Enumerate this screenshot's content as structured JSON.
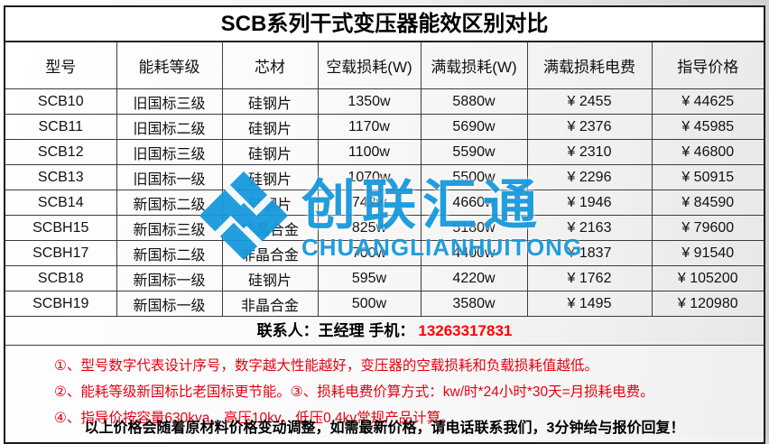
{
  "title": "SCB系列干式变压器能效区别对比",
  "table": {
    "columns": [
      "型号",
      "能耗等级",
      "芯材",
      "空载损耗(W)",
      "满载损耗(W)",
      "满载损耗电费",
      "指导价格"
    ],
    "rows": [
      [
        "SCB10",
        "旧国标三级",
        "硅钢片",
        "1350w",
        "5880w",
        "¥ 2455",
        "¥ 44625"
      ],
      [
        "SCB11",
        "旧国标二级",
        "硅钢片",
        "1170w",
        "5690w",
        "¥ 2376",
        "¥ 45985"
      ],
      [
        "SCB12",
        "旧国标三级",
        "硅钢片",
        "1100w",
        "5590w",
        "¥ 2310",
        "¥ 46800"
      ],
      [
        "SCB13",
        "旧国标一级",
        "硅钢片",
        "1070w",
        "5500w",
        "¥ 2296",
        "¥ 50915"
      ],
      [
        "SCB14",
        "新国标二级",
        "硅钢片",
        "742w",
        "4660w",
        "¥ 1946",
        "¥ 84590"
      ],
      [
        "SCBH15",
        "新国标三级",
        "非晶合金",
        "825w",
        "5180w",
        "¥ 2163",
        "¥ 79600"
      ],
      [
        "SCBH17",
        "新国标二级",
        "非晶合金",
        "700w",
        "4400w",
        "¥ 1837",
        "¥ 91540"
      ],
      [
        "SCB18",
        "新国标一级",
        "硅钢片",
        "595w",
        "4220w",
        "¥ 1762",
        "¥ 105200"
      ],
      [
        "SCBH19",
        "新国标一级",
        "非晶合金",
        "500w",
        "3580w",
        "¥ 1495",
        "¥ 120980"
      ]
    ]
  },
  "contact": {
    "text": "联系人：王经理  手机：",
    "phone": "13263317831"
  },
  "notes": [
    "①、型号数字代表设计序号，数字越大性能越好，变压器的空载损耗和负载损耗值越低。",
    "②、能耗等级新国标比老国标更节能。③、损耗电费价算方式：kw/时*24小时*30天=月损耗电费。",
    "④、指导价按容量630kva、高压10kv、低压0.4kv常规产品计算。"
  ],
  "footer": "以上价格会随着原材料价格变动调整，如需最新价格，请电话联系我们，3分钟给与报价回复！",
  "watermark": {
    "cn": "创联汇通",
    "en": "CHUANGLIANHUITONG",
    "color": "#1799dd"
  }
}
